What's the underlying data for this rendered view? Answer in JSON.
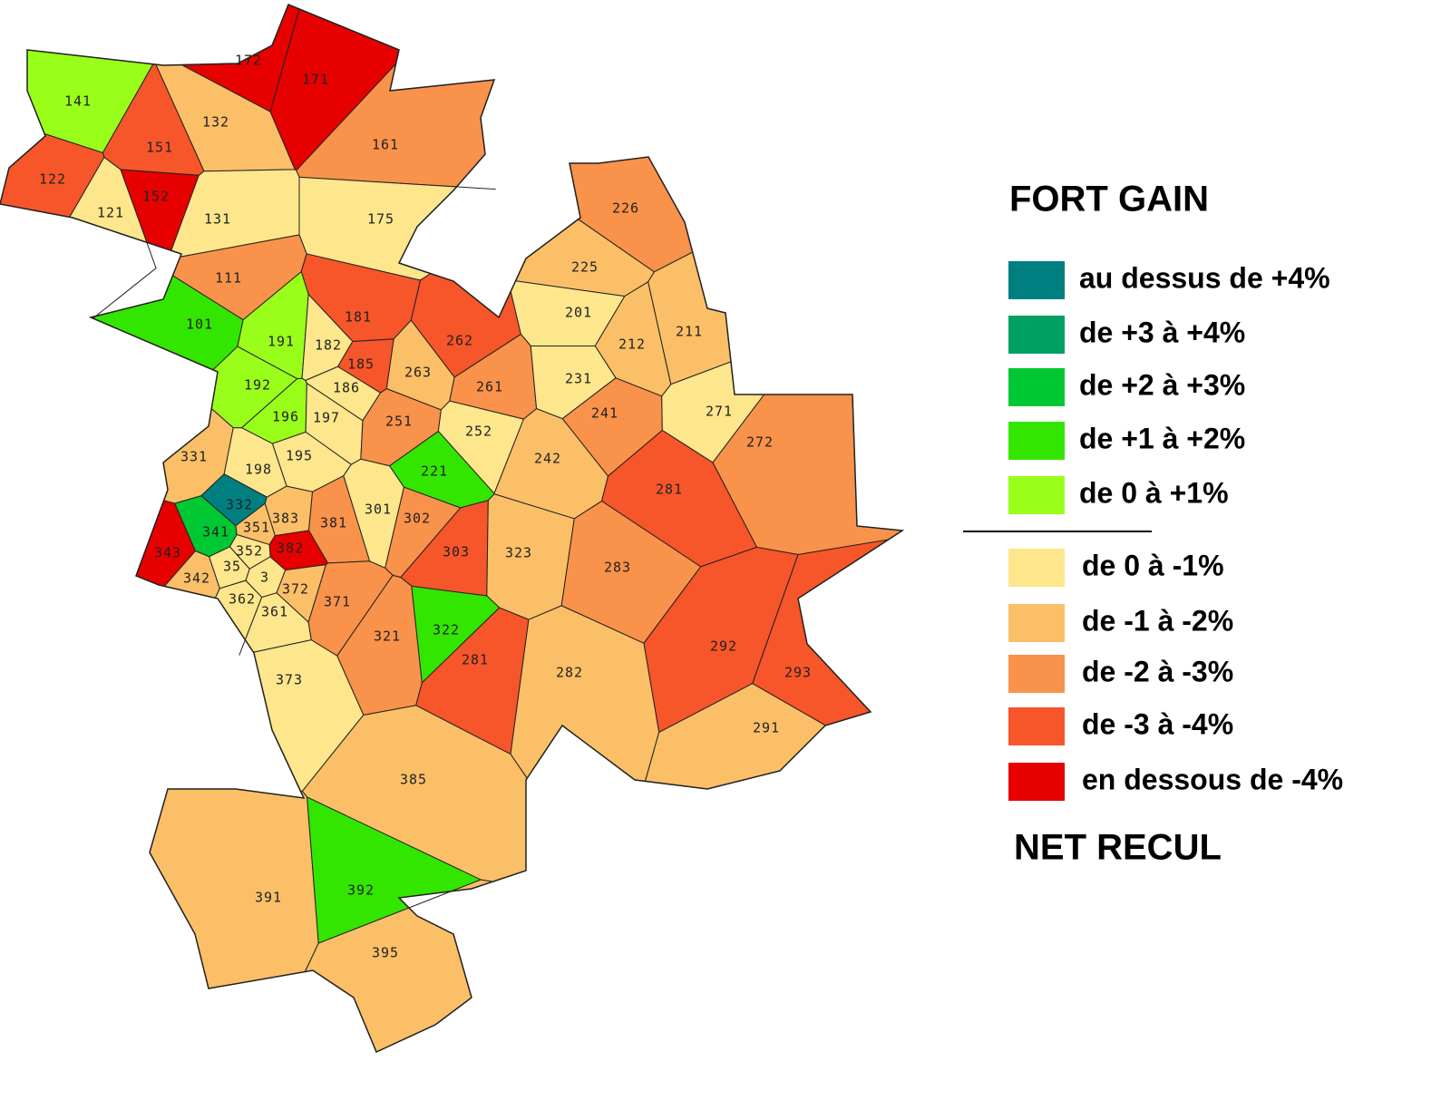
{
  "legend": {
    "title_top": "FORT GAIN",
    "title_bottom": "NET RECUL",
    "items": [
      {
        "label": "au dessus de +4%",
        "color": "#007f80"
      },
      {
        "label": "de +3 à +4%",
        "color": "#00a064"
      },
      {
        "label": "de +2 à +3%",
        "color": "#00c832"
      },
      {
        "label": "de +1 à +2%",
        "color": "#33e600"
      },
      {
        "label": "de 0 à +1%",
        "color": "#99ff1a"
      },
      {
        "label": "de 0 à -1%",
        "color": "#fde68c"
      },
      {
        "label": "de -1 à -2%",
        "color": "#fbbf68"
      },
      {
        "label": "de -2 à -3%",
        "color": "#f9924a"
      },
      {
        "label": "de -3 à -4%",
        "color": "#f7552a"
      },
      {
        "label": "en dessous de -4%",
        "color": "#e60000"
      }
    ]
  },
  "regions": [
    {
      "label": "141",
      "color": "#99ff1a"
    },
    {
      "label": "172",
      "color": "#e60000"
    },
    {
      "label": "171",
      "color": "#e60000"
    },
    {
      "label": "132",
      "color": "#fbbf68"
    },
    {
      "label": "151",
      "color": "#f7552a"
    },
    {
      "label": "161",
      "color": "#f9924a"
    },
    {
      "label": "122",
      "color": "#f7552a"
    },
    {
      "label": "152",
      "color": "#e60000"
    },
    {
      "label": "121",
      "color": "#fde68c"
    },
    {
      "label": "131",
      "color": "#fde68c"
    },
    {
      "label": "175",
      "color": "#fde68c"
    },
    {
      "label": "226",
      "color": "#f9924a"
    },
    {
      "label": "111",
      "color": "#f9924a"
    },
    {
      "label": "225",
      "color": "#fbbf68"
    },
    {
      "label": "101",
      "color": "#33e600"
    },
    {
      "label": "181",
      "color": "#f7552a"
    },
    {
      "label": "262",
      "color": "#f7552a"
    },
    {
      "label": "201",
      "color": "#fde68c"
    },
    {
      "label": "212",
      "color": "#fbbf68"
    },
    {
      "label": "211",
      "color": "#fbbf68"
    },
    {
      "label": "191",
      "color": "#99ff1a"
    },
    {
      "label": "182",
      "color": "#fde68c"
    },
    {
      "label": "185",
      "color": "#f7552a"
    },
    {
      "label": "263",
      "color": "#fbbf68"
    },
    {
      "label": "261",
      "color": "#f9924a"
    },
    {
      "label": "231",
      "color": "#fde68c"
    },
    {
      "label": "192",
      "color": "#99ff1a"
    },
    {
      "label": "186",
      "color": "#fde68c"
    },
    {
      "label": "196",
      "color": "#99ff1a"
    },
    {
      "label": "197",
      "color": "#fde68c"
    },
    {
      "label": "251",
      "color": "#f9924a"
    },
    {
      "label": "241",
      "color": "#f9924a"
    },
    {
      "label": "271",
      "color": "#fde68c"
    },
    {
      "label": "272",
      "color": "#f9924a"
    },
    {
      "label": "252",
      "color": "#fde68c"
    },
    {
      "label": "331",
      "color": "#fbbf68"
    },
    {
      "label": "195",
      "color": "#fde68c"
    },
    {
      "label": "198",
      "color": "#fde68c"
    },
    {
      "label": "242",
      "color": "#fbbf68"
    },
    {
      "label": "221",
      "color": "#33e600"
    },
    {
      "label": "281",
      "color": "#f7552a"
    },
    {
      "label": "332",
      "color": "#007f80"
    },
    {
      "label": "301",
      "color": "#fde68c"
    },
    {
      "label": "383",
      "color": "#fbbf68"
    },
    {
      "label": "351",
      "color": "#fbbf68"
    },
    {
      "label": "381",
      "color": "#f9924a"
    },
    {
      "label": "302",
      "color": "#f9924a"
    },
    {
      "label": "341",
      "color": "#00c832"
    },
    {
      "label": "382",
      "color": "#e60000"
    },
    {
      "label": "343",
      "color": "#e60000"
    },
    {
      "label": "352",
      "color": "#fde68c"
    },
    {
      "label": "303",
      "color": "#f7552a"
    },
    {
      "label": "323",
      "color": "#fbbf68"
    },
    {
      "label": "283",
      "color": "#f9924a"
    },
    {
      "label": "342",
      "color": "#fbbf68"
    },
    {
      "label": "35",
      "color": "#fde68c"
    },
    {
      "label": "3",
      "color": "#fde68c"
    },
    {
      "label": "372",
      "color": "#fbbf68"
    },
    {
      "label": "362",
      "color": "#fde68c"
    },
    {
      "label": "361",
      "color": "#fde68c"
    },
    {
      "label": "371",
      "color": "#f9924a"
    },
    {
      "label": "321",
      "color": "#f9924a"
    },
    {
      "label": "322",
      "color": "#33e600"
    },
    {
      "label": "292",
      "color": "#f7552a"
    },
    {
      "label": "281",
      "color": "#f7552a"
    },
    {
      "label": "293",
      "color": "#f7552a"
    },
    {
      "label": "282",
      "color": "#fbbf68"
    },
    {
      "label": "373",
      "color": "#fde68c"
    },
    {
      "label": "291",
      "color": "#fbbf68"
    },
    {
      "label": "385",
      "color": "#fbbf68"
    },
    {
      "label": "391",
      "color": "#fbbf68"
    },
    {
      "label": "392",
      "color": "#33e600"
    },
    {
      "label": "395",
      "color": "#fbbf68"
    }
  ]
}
